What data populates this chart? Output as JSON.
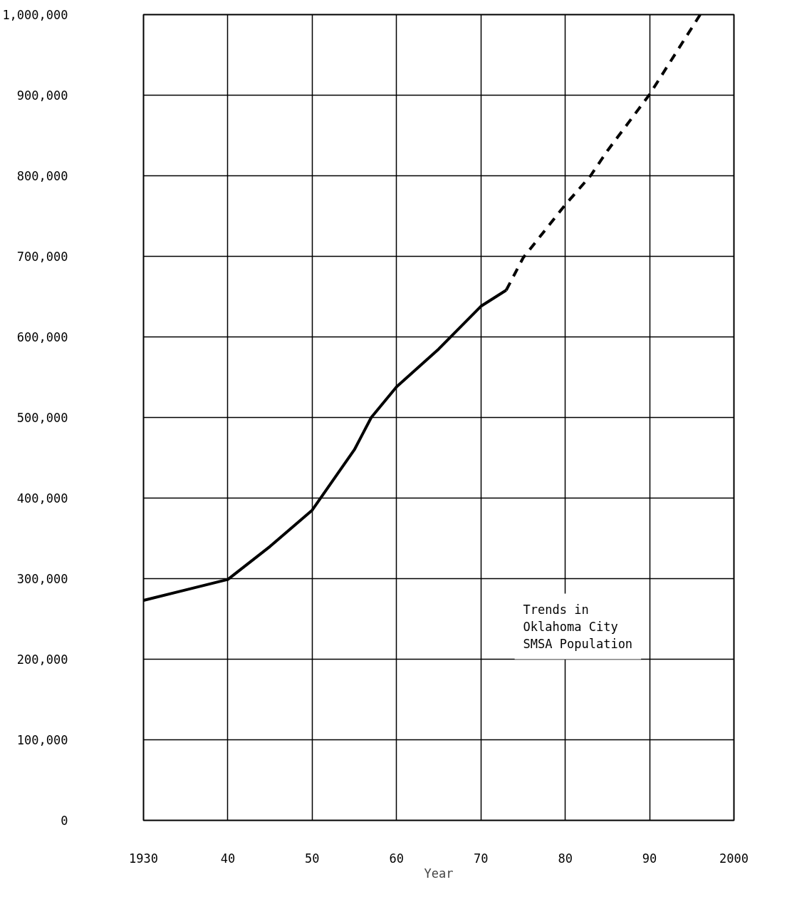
{
  "chart_data": {
    "type": "line",
    "xlabel": "Year",
    "annotations": [
      "Trends in\nOklahoma City\nSMSA Population"
    ],
    "series": [
      {
        "color": "#000000",
        "line_style": "solid",
        "x": [
          1930,
          1940,
          1945,
          1950,
          1955,
          1957,
          1960,
          1965,
          1970,
          1973
        ],
        "values": [
          273000,
          299000,
          340000,
          385000,
          460000,
          500000,
          538000,
          585000,
          638000,
          658000
        ]
      },
      {
        "color": "#000000",
        "line_style": "dashed",
        "x": [
          1973,
          1975,
          1980,
          1983,
          1985,
          1990,
          1996
        ],
        "values": [
          658000,
          698000,
          764000,
          800000,
          831000,
          901000,
          1000000
        ]
      }
    ],
    "xlim": [
      1930,
      2000
    ],
    "xticks": [
      {
        "value": 1930,
        "label": "1930"
      },
      {
        "value": 1940,
        "label": "40"
      },
      {
        "value": 1950,
        "label": "50"
      },
      {
        "value": 1960,
        "label": "60"
      },
      {
        "value": 1970,
        "label": "70"
      },
      {
        "value": 1980,
        "label": "80"
      },
      {
        "value": 1990,
        "label": "90"
      },
      {
        "value": 2000,
        "label": "2000"
      }
    ],
    "ylim": [
      0,
      1000000
    ],
    "yticks": [
      {
        "value": 0,
        "label": "0"
      },
      {
        "value": 100000,
        "label": "100,000"
      },
      {
        "value": 200000,
        "label": "200,000"
      },
      {
        "value": 300000,
        "label": "300,000"
      },
      {
        "value": 400000,
        "label": "400,000"
      },
      {
        "value": 500000,
        "label": "500,000"
      },
      {
        "value": 600000,
        "label": "600,000"
      },
      {
        "value": 700000,
        "label": "700,000"
      },
      {
        "value": 800000,
        "label": "800,000"
      },
      {
        "value": 900000,
        "label": "900,000"
      },
      {
        "value": 1000000,
        "label": "1,000,000"
      }
    ],
    "grid": true
  }
}
